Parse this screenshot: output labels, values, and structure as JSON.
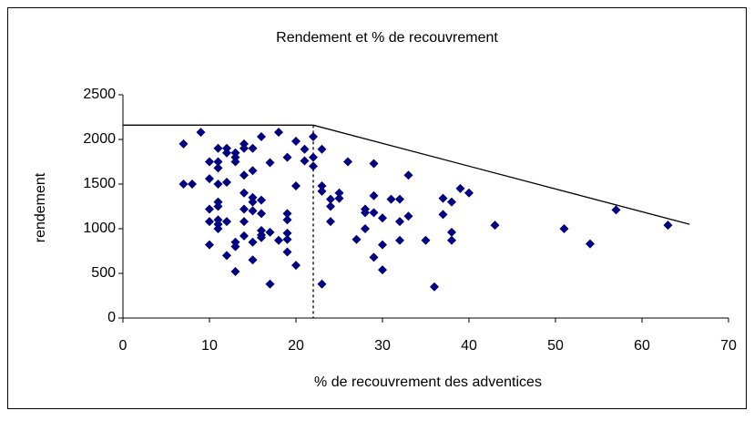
{
  "chart_data": {
    "type": "scatter",
    "title": "Rendement et % de recouvrement",
    "xlabel": "% de recouvrement des adventices",
    "ylabel": "rendement",
    "color": "#000080",
    "grid": false,
    "xlim": [
      0,
      70
    ],
    "xticks": [
      0,
      10,
      20,
      30,
      40,
      50,
      60,
      70
    ],
    "ylim": [
      0,
      2500
    ],
    "yticks": [
      0,
      500,
      1000,
      1500,
      2000,
      2500
    ],
    "x": [
      7,
      7,
      8,
      9,
      10,
      10,
      10,
      10,
      10,
      11,
      11,
      11,
      11,
      11,
      11,
      11,
      11,
      11,
      12,
      12,
      12,
      12,
      12,
      13,
      13,
      13,
      13,
      13,
      13,
      14,
      14,
      14,
      14,
      14,
      14,
      14,
      15,
      15,
      15,
      15,
      15,
      15,
      15,
      16,
      16,
      16,
      16,
      16,
      16,
      17,
      17,
      17,
      18,
      18,
      19,
      19,
      19,
      19,
      19,
      19,
      20,
      20,
      20,
      21,
      21,
      22,
      22,
      22,
      23,
      23,
      23,
      23,
      24,
      24,
      24,
      25,
      25,
      26,
      27,
      28,
      28,
      28,
      29,
      29,
      29,
      29,
      30,
      30,
      30,
      31,
      32,
      32,
      32,
      33,
      33,
      35,
      36,
      37,
      37,
      38,
      38,
      38,
      39,
      40,
      43,
      51,
      54,
      57,
      63
    ],
    "y": [
      1950,
      1500,
      1500,
      2080,
      1750,
      1560,
      1220,
      1080,
      820,
      1900,
      1750,
      1680,
      1500,
      1300,
      1250,
      1100,
      1050,
      1000,
      1900,
      1850,
      1520,
      1080,
      700,
      1850,
      1800,
      1750,
      850,
      800,
      520,
      1950,
      1900,
      1600,
      1400,
      1220,
      1080,
      920,
      1900,
      1650,
      1350,
      1300,
      1200,
      850,
      650,
      2030,
      1320,
      1170,
      980,
      930,
      900,
      1740,
      960,
      380,
      2080,
      870,
      1800,
      1170,
      1100,
      950,
      880,
      740,
      1980,
      1480,
      590,
      1890,
      1760,
      2030,
      1800,
      1700,
      1890,
      1480,
      1420,
      380,
      1330,
      1250,
      1080,
      1400,
      1340,
      1750,
      880,
      1220,
      1180,
      1000,
      1730,
      1370,
      1180,
      680,
      1120,
      820,
      540,
      1330,
      1330,
      1080,
      870,
      1600,
      1140,
      870,
      350,
      1340,
      1160,
      1300,
      960,
      870,
      1450,
      1400,
      1040,
      1000,
      830,
      1210,
      1040
    ],
    "lines": [
      {
        "x": [
          0,
          22,
          65.5
        ],
        "y": [
          2160,
          2160,
          1050
        ],
        "dash": false
      },
      {
        "x": [
          22,
          22
        ],
        "y": [
          2160,
          0
        ],
        "dash": true
      }
    ]
  }
}
